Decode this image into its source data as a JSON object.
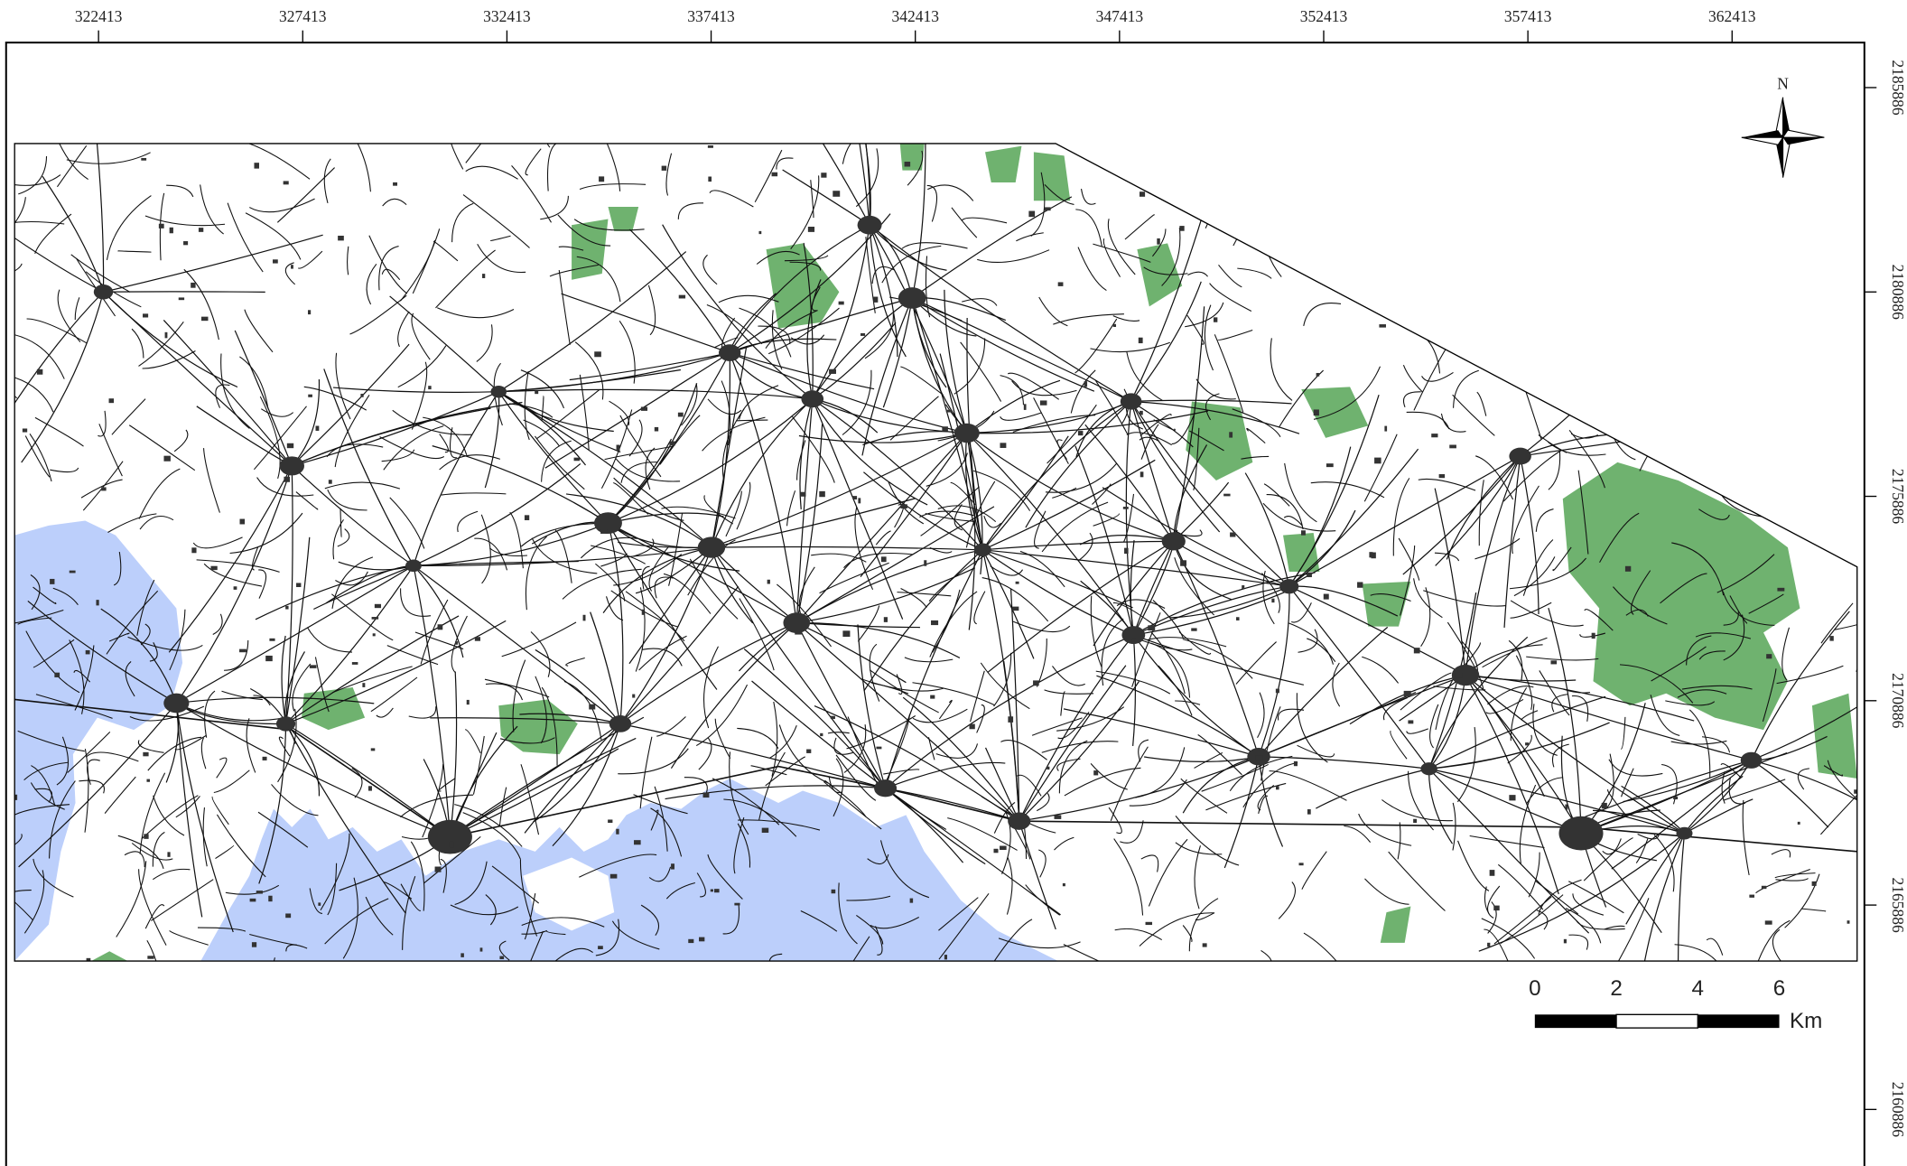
{
  "map": {
    "x_ticks": [
      "322413",
      "327413",
      "332413",
      "337413",
      "342413",
      "347413",
      "352413",
      "357413",
      "362413"
    ],
    "y_ticks": [
      "2185886",
      "2180886",
      "2175886",
      "2170886",
      "2165886",
      "2160886"
    ],
    "north": "N",
    "scale_bar": {
      "labels": [
        "0",
        "2",
        "4",
        "6"
      ],
      "unit": "Km"
    }
  }
}
